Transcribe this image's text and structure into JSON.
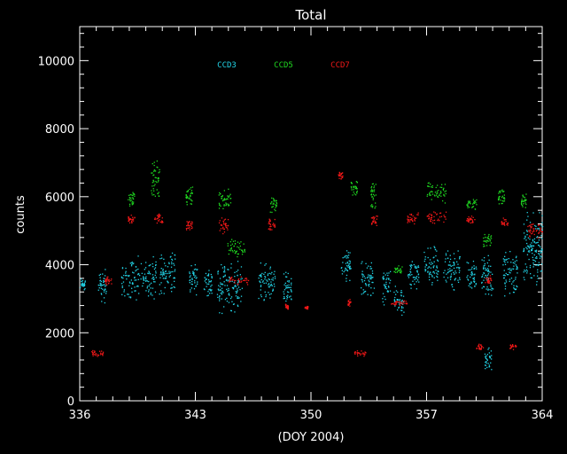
{
  "chart_data": {
    "type": "scatter",
    "title": "Total",
    "xlabel": "(DOY 2004)",
    "ylabel": "counts",
    "xlim": [
      336,
      364
    ],
    "ylim": [
      0,
      11000
    ],
    "xticks": [
      336,
      343,
      350,
      357,
      364
    ],
    "yticks": [
      0,
      2000,
      4000,
      6000,
      8000,
      10000
    ],
    "grid": false,
    "legend_position": "top-center",
    "series": [
      {
        "name": "CCD3",
        "color": "#22d3e6",
        "clusters": [
          {
            "x": [
              336.0,
              336.3
            ],
            "y": [
              3200,
              3700
            ]
          },
          {
            "x": [
              337.1,
              337.6
            ],
            "y": [
              2800,
              4000
            ]
          },
          {
            "x": [
              338.5,
              340.6
            ],
            "y": [
              2900,
              4300
            ]
          },
          {
            "x": [
              340.8,
              341.8
            ],
            "y": [
              3100,
              4500
            ]
          },
          {
            "x": [
              342.6,
              343.1
            ],
            "y": [
              3100,
              4100
            ]
          },
          {
            "x": [
              343.5,
              344.0
            ],
            "y": [
              3000,
              4000
            ]
          },
          {
            "x": [
              344.3,
              345.8
            ],
            "y": [
              2500,
              4200
            ]
          },
          {
            "x": [
              346.8,
              347.8
            ],
            "y": [
              2900,
              4200
            ]
          },
          {
            "x": [
              348.3,
              348.8
            ],
            "y": [
              2800,
              3900
            ]
          },
          {
            "x": [
              351.8,
              352.4
            ],
            "y": [
              3500,
              4500
            ]
          },
          {
            "x": [
              353.0,
              353.8
            ],
            "y": [
              3000,
              4200
            ]
          },
          {
            "x": [
              354.3,
              354.8
            ],
            "y": [
              2800,
              3900
            ]
          },
          {
            "x": [
              355.0,
              355.6
            ],
            "y": [
              2500,
              3400
            ]
          },
          {
            "x": [
              355.8,
              356.5
            ],
            "y": [
              3200,
              4200
            ]
          },
          {
            "x": [
              356.8,
              357.7
            ],
            "y": [
              3300,
              4600
            ]
          },
          {
            "x": [
              358.0,
              359.0
            ],
            "y": [
              3200,
              4500
            ]
          },
          {
            "x": [
              359.4,
              360.0
            ],
            "y": [
              3200,
              4200
            ]
          },
          {
            "x": [
              360.3,
              361.0
            ],
            "y": [
              3000,
              4400
            ]
          },
          {
            "x": [
              361.6,
              362.5
            ],
            "y": [
              3000,
              4500
            ]
          },
          {
            "x": [
              362.8,
              364.0
            ],
            "y": [
              3300,
              5700
            ]
          },
          {
            "x": [
              360.5,
              360.9
            ],
            "y": [
              900,
              1600
            ]
          }
        ]
      },
      {
        "name": "CCD5",
        "color": "#1fd620",
        "clusters": [
          {
            "x": [
              338.9,
              339.3
            ],
            "y": [
              5700,
              6200
            ]
          },
          {
            "x": [
              340.3,
              340.8
            ],
            "y": [
              5900,
              7200
            ]
          },
          {
            "x": [
              342.4,
              342.8
            ],
            "y": [
              5600,
              6400
            ]
          },
          {
            "x": [
              344.4,
              345.2
            ],
            "y": [
              5600,
              6300
            ]
          },
          {
            "x": [
              344.9,
              346.0
            ],
            "y": [
              4200,
              4800
            ]
          },
          {
            "x": [
              347.5,
              347.9
            ],
            "y": [
              5500,
              6100
            ]
          },
          {
            "x": [
              352.4,
              352.8
            ],
            "y": [
              6000,
              6600
            ]
          },
          {
            "x": [
              353.6,
              353.9
            ],
            "y": [
              5500,
              6500
            ]
          },
          {
            "x": [
              355.0,
              355.5
            ],
            "y": [
              3700,
              4000
            ]
          },
          {
            "x": [
              357.0,
              358.2
            ],
            "y": [
              5800,
              6500
            ]
          },
          {
            "x": [
              359.4,
              360.0
            ],
            "y": [
              5600,
              6000
            ]
          },
          {
            "x": [
              360.4,
              360.9
            ],
            "y": [
              4500,
              5000
            ]
          },
          {
            "x": [
              361.3,
              361.7
            ],
            "y": [
              5700,
              6300
            ]
          },
          {
            "x": [
              362.7,
              363.0
            ],
            "y": [
              5600,
              6200
            ]
          }
        ]
      },
      {
        "name": "CCD7",
        "color": "#f01818",
        "clusters": [
          {
            "x": [
              336.7,
              337.4
            ],
            "y": [
              1300,
              1500
            ]
          },
          {
            "x": [
              337.5,
              337.9
            ],
            "y": [
              3400,
              3700
            ]
          },
          {
            "x": [
              338.9,
              339.3
            ],
            "y": [
              5200,
              5500
            ]
          },
          {
            "x": [
              340.5,
              341.0
            ],
            "y": [
              5200,
              5600
            ]
          },
          {
            "x": [
              342.4,
              342.8
            ],
            "y": [
              5000,
              5300
            ]
          },
          {
            "x": [
              344.4,
              345.0
            ],
            "y": [
              4900,
              5400
            ]
          },
          {
            "x": [
              345.0,
              346.2
            ],
            "y": [
              3400,
              3700
            ]
          },
          {
            "x": [
              347.4,
              347.8
            ],
            "y": [
              5000,
              5400
            ]
          },
          {
            "x": [
              348.4,
              348.6
            ],
            "y": [
              2700,
              2900
            ]
          },
          {
            "x": [
              349.6,
              349.8
            ],
            "y": [
              2700,
              2800
            ]
          },
          {
            "x": [
              351.6,
              351.9
            ],
            "y": [
              6500,
              6800
            ]
          },
          {
            "x": [
              352.2,
              352.4
            ],
            "y": [
              2800,
              3000
            ]
          },
          {
            "x": [
              352.6,
              353.3
            ],
            "y": [
              1300,
              1500
            ]
          },
          {
            "x": [
              353.6,
              354.0
            ],
            "y": [
              5100,
              5500
            ]
          },
          {
            "x": [
              354.8,
              355.8
            ],
            "y": [
              2800,
              3000
            ]
          },
          {
            "x": [
              355.8,
              356.5
            ],
            "y": [
              5200,
              5600
            ]
          },
          {
            "x": [
              357.0,
              358.2
            ],
            "y": [
              5200,
              5600
            ]
          },
          {
            "x": [
              359.4,
              359.9
            ],
            "y": [
              5200,
              5500
            ]
          },
          {
            "x": [
              360.0,
              360.4
            ],
            "y": [
              1500,
              1700
            ]
          },
          {
            "x": [
              360.5,
              360.9
            ],
            "y": [
              3400,
              3700
            ]
          },
          {
            "x": [
              361.5,
              361.9
            ],
            "y": [
              5100,
              5400
            ]
          },
          {
            "x": [
              362.0,
              362.4
            ],
            "y": [
              1500,
              1700
            ]
          },
          {
            "x": [
              363.1,
              364.0
            ],
            "y": [
              4800,
              5300
            ]
          }
        ]
      }
    ]
  }
}
